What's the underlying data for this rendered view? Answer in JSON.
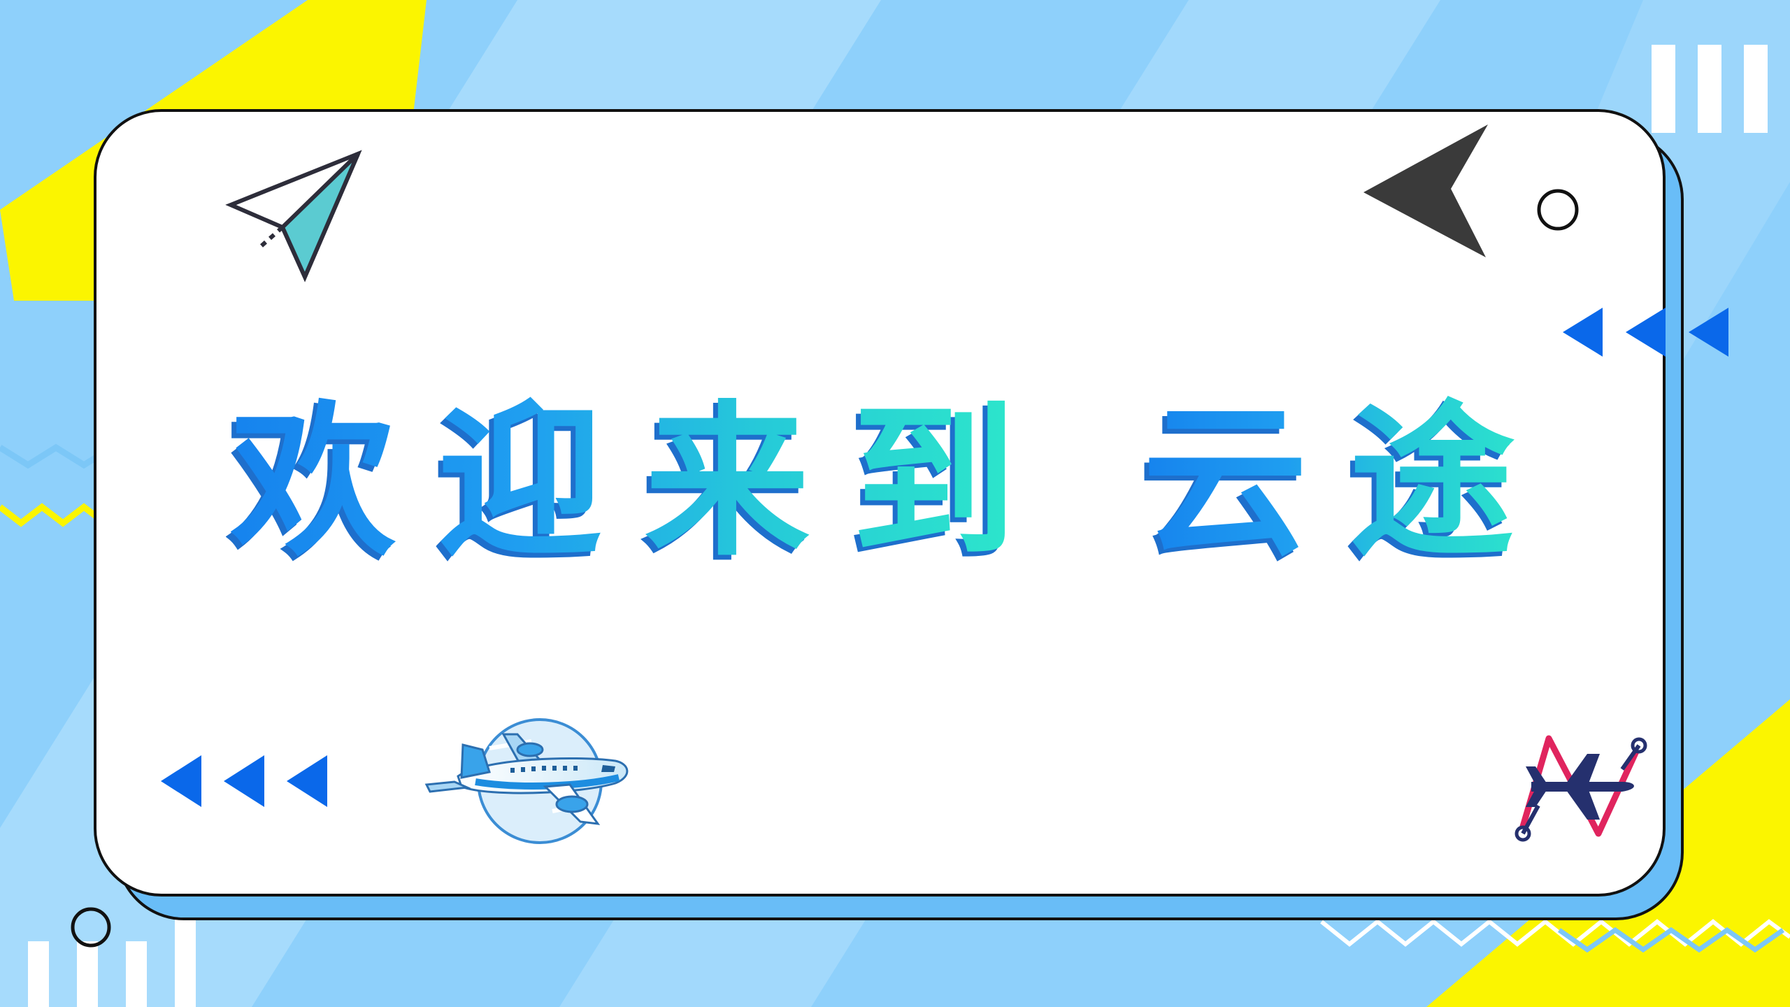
{
  "title": {
    "part1": "欢迎来到",
    "part2": "云途"
  },
  "colors": {
    "sky": "#8ed0fb",
    "sky_light": "#b6e2fd",
    "card": "#ffffff",
    "card_shadow": "#69bdf7",
    "yellow": "#fbf500",
    "blue_accent": "#0a68ea",
    "dark_arrow": "#3a3a3a",
    "teal": "#5bcbd1",
    "gradient_start": "#1683ee",
    "gradient_end": "#2eeac9"
  },
  "icons": {
    "paper_plane": "paper-plane-icon",
    "airplane_badge": "airplane-badge-icon",
    "flight_logo": "flight-logo-icon",
    "cursor_arrow": "cursor-arrow-icon",
    "rewind_triangles": "rewind-triangles-icon",
    "circle_outline": "circle-outline-icon",
    "bars": "bars-icon",
    "zigzag": "zigzag-line"
  }
}
